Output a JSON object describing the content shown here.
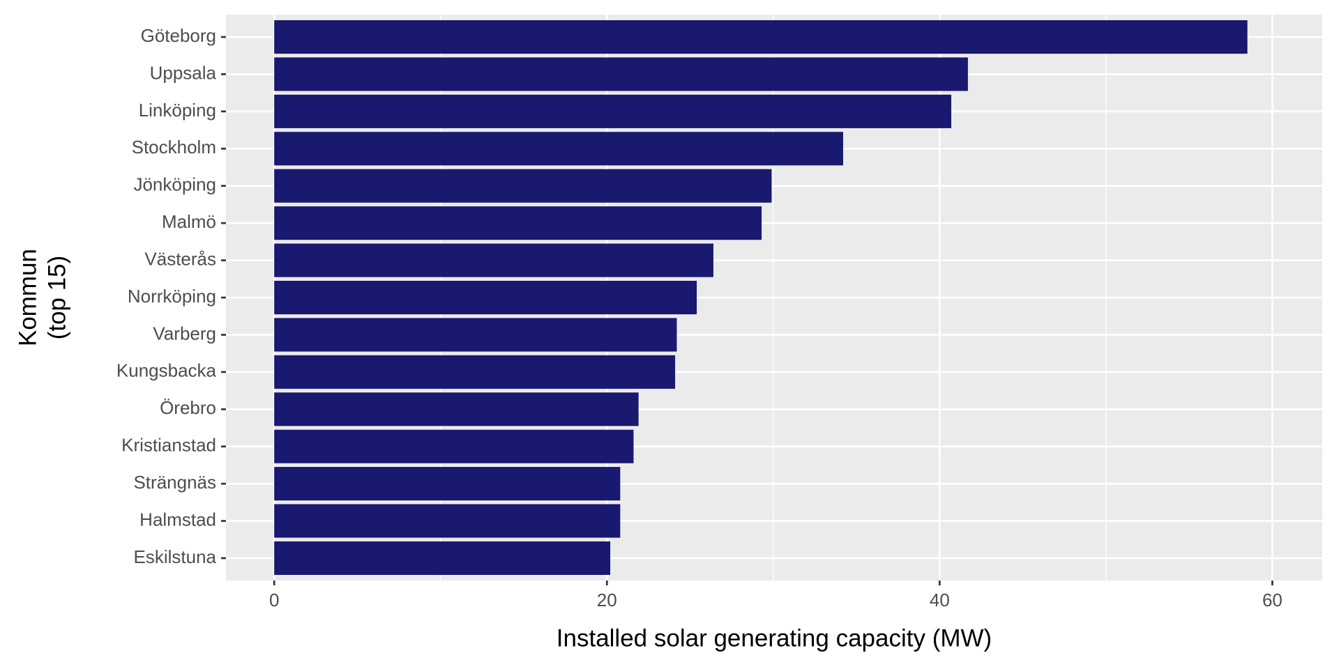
{
  "chart_data": {
    "type": "bar",
    "orientation": "horizontal",
    "xlabel": "Installed solar generating capacity (MW)",
    "ylabel": [
      "Kommun",
      "(top 15)"
    ],
    "categories": [
      "Göteborg",
      "Uppsala",
      "Linköping",
      "Stockholm",
      "Jönköping",
      "Malmö",
      "Västerås",
      "Norrköping",
      "Varberg",
      "Kungsbacka",
      "Örebro",
      "Kristianstad",
      "Strängnäs",
      "Halmstad",
      "Eskilstuna"
    ],
    "values": [
      58.5,
      41.7,
      40.7,
      34.2,
      29.9,
      29.3,
      26.4,
      25.4,
      24.2,
      24.1,
      21.9,
      21.6,
      20.8,
      20.8,
      20.2
    ],
    "color": "#191970",
    "xlim": [
      -2.9,
      63
    ],
    "xticks": [
      0,
      20,
      40,
      60
    ],
    "minor_xticks": [
      10,
      30,
      50
    ],
    "grid": true
  }
}
